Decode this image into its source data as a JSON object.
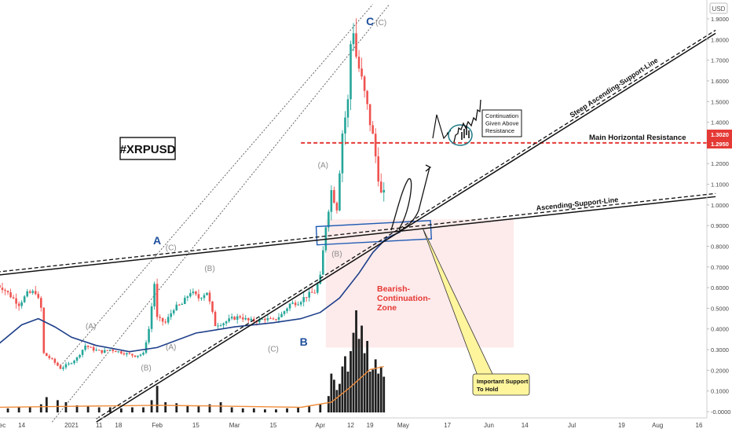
{
  "chart_data": {
    "type": "candlestick",
    "title": "#XRPUSD",
    "currency": "USD",
    "y_scale": "linear",
    "ylim": [
      -0.05,
      1.97
    ],
    "y_ticks": [
      "1.9000",
      "1.8000",
      "1.7000",
      "1.6000",
      "1.5000",
      "1.4000",
      "1.3000",
      "1.2000",
      "1.1000",
      "1.0000",
      "0.9000",
      "0.8000",
      "0.7000",
      "0.6000",
      "0.5000",
      "0.4000",
      "0.3000",
      "0.2000",
      "0.1000",
      "-0.0000"
    ],
    "price_tags": [
      {
        "label": "1.3020",
        "value": 1.302,
        "color": "#e53935"
      },
      {
        "label": "1.2950",
        "value": 1.295,
        "color": "#e53935"
      }
    ],
    "x_ticks": [
      {
        "label": "ec",
        "date": "2020-12-07"
      },
      {
        "label": "14",
        "date": "2020-12-14"
      },
      {
        "label": "2021",
        "date": "2021-01-01"
      },
      {
        "label": "11",
        "date": "2021-01-11"
      },
      {
        "label": "18",
        "date": "2021-01-18"
      },
      {
        "label": "Feb",
        "date": "2021-02-01"
      },
      {
        "label": "15",
        "date": "2021-02-15"
      },
      {
        "label": "Mar",
        "date": "2021-03-01"
      },
      {
        "label": "15",
        "date": "2021-03-15"
      },
      {
        "label": "Apr",
        "date": "2021-04-01"
      },
      {
        "label": "12",
        "date": "2021-04-12"
      },
      {
        "label": "19",
        "date": "2021-04-19"
      },
      {
        "label": "May",
        "date": "2021-05-01"
      },
      {
        "label": "17",
        "date": "2021-05-17"
      },
      {
        "label": "Jun",
        "date": "2021-06-01"
      },
      {
        "label": "14",
        "date": "2021-06-14"
      },
      {
        "label": "Jul",
        "date": "2021-07-01"
      },
      {
        "label": "19",
        "date": "2021-07-19"
      },
      {
        "label": "Aug",
        "date": "2021-08-01"
      },
      {
        "label": "16",
        "date": "2021-08-16"
      }
    ],
    "price_path": [
      [
        "2020-12-05",
        0.62
      ],
      [
        "2020-12-08",
        0.6
      ],
      [
        "2020-12-11",
        0.56
      ],
      [
        "2020-12-14",
        0.52
      ],
      [
        "2020-12-17",
        0.57
      ],
      [
        "2020-12-20",
        0.58
      ],
      [
        "2020-12-22",
        0.5
      ],
      [
        "2020-12-23",
        0.28
      ],
      [
        "2020-12-26",
        0.25
      ],
      [
        "2020-12-29",
        0.21
      ],
      [
        "2021-01-01",
        0.23
      ],
      [
        "2021-01-04",
        0.26
      ],
      [
        "2021-01-07",
        0.32
      ],
      [
        "2021-01-10",
        0.3
      ],
      [
        "2021-01-13",
        0.29
      ],
      [
        "2021-01-16",
        0.3
      ],
      [
        "2021-01-19",
        0.29
      ],
      [
        "2021-01-22",
        0.28
      ],
      [
        "2021-01-25",
        0.27
      ],
      [
        "2021-01-28",
        0.28
      ],
      [
        "2021-01-30",
        0.4
      ],
      [
        "2021-02-01",
        0.62
      ],
      [
        "2021-02-02",
        0.45
      ],
      [
        "2021-02-05",
        0.43
      ],
      [
        "2021-02-08",
        0.5
      ],
      [
        "2021-02-11",
        0.52
      ],
      [
        "2021-02-14",
        0.58
      ],
      [
        "2021-02-17",
        0.55
      ],
      [
        "2021-02-20",
        0.58
      ],
      [
        "2021-02-23",
        0.42
      ],
      [
        "2021-02-26",
        0.43
      ],
      [
        "2021-03-01",
        0.45
      ],
      [
        "2021-03-04",
        0.46
      ],
      [
        "2021-03-07",
        0.44
      ],
      [
        "2021-03-10",
        0.44
      ],
      [
        "2021-03-13",
        0.45
      ],
      [
        "2021-03-16",
        0.44
      ],
      [
        "2021-03-19",
        0.47
      ],
      [
        "2021-03-22",
        0.52
      ],
      [
        "2021-03-25",
        0.53
      ],
      [
        "2021-03-28",
        0.56
      ],
      [
        "2021-03-31",
        0.58
      ],
      [
        "2021-04-02",
        0.65
      ],
      [
        "2021-04-04",
        0.9
      ],
      [
        "2021-04-06",
        1.07
      ],
      [
        "2021-04-08",
        0.99
      ],
      [
        "2021-04-10",
        1.35
      ],
      [
        "2021-04-12",
        1.5
      ],
      [
        "2021-04-13",
        1.78
      ],
      [
        "2021-04-14",
        1.85
      ],
      [
        "2021-04-15",
        1.72
      ],
      [
        "2021-04-17",
        1.6
      ],
      [
        "2021-04-19",
        1.47
      ],
      [
        "2021-04-21",
        1.33
      ],
      [
        "2021-04-23",
        1.14
      ],
      [
        "2021-04-24",
        1.05
      ]
    ],
    "ma_path": [
      [
        "2020-12-05",
        0.32
      ],
      [
        "2020-12-14",
        0.42
      ],
      [
        "2020-12-20",
        0.45
      ],
      [
        "2020-12-26",
        0.41
      ],
      [
        "2021-01-01",
        0.36
      ],
      [
        "2021-01-10",
        0.32
      ],
      [
        "2021-01-22",
        0.29
      ],
      [
        "2021-02-01",
        0.31
      ],
      [
        "2021-02-15",
        0.38
      ],
      [
        "2021-03-01",
        0.41
      ],
      [
        "2021-03-15",
        0.43
      ],
      [
        "2021-03-25",
        0.45
      ],
      [
        "2021-04-01",
        0.48
      ],
      [
        "2021-04-08",
        0.55
      ],
      [
        "2021-04-15",
        0.67
      ],
      [
        "2021-04-20",
        0.77
      ],
      [
        "2021-04-25",
        0.84
      ],
      [
        "2021-04-30",
        0.87
      ]
    ],
    "volume": {
      "unit": "relative (0-1)",
      "series": [
        [
          "2020-12-05",
          0.05
        ],
        [
          "2020-12-09",
          0.04
        ],
        [
          "2020-12-13",
          0.05
        ],
        [
          "2020-12-17",
          0.05
        ],
        [
          "2020-12-21",
          0.08
        ],
        [
          "2020-12-23",
          0.15
        ],
        [
          "2020-12-27",
          0.12
        ],
        [
          "2020-12-30",
          0.1
        ],
        [
          "2021-01-03",
          0.07
        ],
        [
          "2021-01-07",
          0.06
        ],
        [
          "2021-01-11",
          0.05
        ],
        [
          "2021-01-15",
          0.05
        ],
        [
          "2021-01-19",
          0.04
        ],
        [
          "2021-01-23",
          0.05
        ],
        [
          "2021-01-27",
          0.05
        ],
        [
          "2021-01-30",
          0.12
        ],
        [
          "2021-02-01",
          0.26
        ],
        [
          "2021-02-04",
          0.1
        ],
        [
          "2021-02-08",
          0.09
        ],
        [
          "2021-02-12",
          0.07
        ],
        [
          "2021-02-16",
          0.06
        ],
        [
          "2021-02-20",
          0.08
        ],
        [
          "2021-02-24",
          0.1
        ],
        [
          "2021-02-28",
          0.05
        ],
        [
          "2021-03-04",
          0.04
        ],
        [
          "2021-03-08",
          0.04
        ],
        [
          "2021-03-12",
          0.03
        ],
        [
          "2021-03-16",
          0.03
        ],
        [
          "2021-03-20",
          0.04
        ],
        [
          "2021-03-24",
          0.05
        ],
        [
          "2021-03-28",
          0.06
        ],
        [
          "2021-04-01",
          0.08
        ],
        [
          "2021-04-04",
          0.16
        ],
        [
          "2021-04-05",
          0.38
        ],
        [
          "2021-04-06",
          0.32
        ],
        [
          "2021-04-07",
          0.22
        ],
        [
          "2021-04-08",
          0.28
        ],
        [
          "2021-04-09",
          0.45
        ],
        [
          "2021-04-10",
          0.55
        ],
        [
          "2021-04-11",
          0.4
        ],
        [
          "2021-04-12",
          0.6
        ],
        [
          "2021-04-13",
          0.78
        ],
        [
          "2021-04-14",
          1.0
        ],
        [
          "2021-04-15",
          0.72
        ],
        [
          "2021-04-16",
          0.85
        ],
        [
          "2021-04-17",
          0.58
        ],
        [
          "2021-04-18",
          0.7
        ],
        [
          "2021-04-19",
          0.4
        ],
        [
          "2021-04-20",
          0.42
        ],
        [
          "2021-04-21",
          0.52
        ],
        [
          "2021-04-22",
          0.38
        ],
        [
          "2021-04-23",
          0.45
        ],
        [
          "2021-04-24",
          0.35
        ]
      ]
    },
    "volume_ma": [
      [
        "2020-12-05",
        0.05
      ],
      [
        "2021-01-01",
        0.06
      ],
      [
        "2021-02-01",
        0.07
      ],
      [
        "2021-03-01",
        0.06
      ],
      [
        "2021-03-25",
        0.05
      ],
      [
        "2021-04-05",
        0.1
      ],
      [
        "2021-04-12",
        0.25
      ],
      [
        "2021-04-19",
        0.42
      ],
      [
        "2021-04-24",
        0.45
      ]
    ],
    "lines": [
      {
        "name": "Main Horizontal Resistance",
        "style": "red-dashed",
        "from": [
          "2021-03-25",
          1.3
        ],
        "to": [
          "2021-08-22",
          1.3
        ]
      },
      {
        "name": "Steep Ascending-Support-Line",
        "style": "black-solid+dashed",
        "from": [
          "2021-01-10",
          -0.05
        ],
        "to": [
          "2021-08-22",
          1.83
        ]
      },
      {
        "name": "Ascending-Support-Line",
        "style": "black-solid+dashed",
        "from": [
          "2020-12-05",
          0.66
        ],
        "to": [
          "2021-08-22",
          1.04
        ]
      },
      {
        "name": "upper channel",
        "style": "grey-dotted",
        "from": [
          "2020-12-25",
          -0.05
        ],
        "to": [
          "2021-04-26",
          1.97
        ]
      },
      {
        "name": "lower channel",
        "style": "grey-dotted",
        "from": [
          "2020-12-28",
          0.22
        ],
        "to": [
          "2021-04-20",
          1.97
        ]
      }
    ],
    "annotations": [
      {
        "text": "#XRPUSD",
        "kind": "title-box"
      },
      {
        "text": "A",
        "kind": "wave-major",
        "at": [
          "2021-02-01",
          0.81
        ]
      },
      {
        "text": "B",
        "kind": "wave-major",
        "at": [
          "2021-03-26",
          0.32
        ]
      },
      {
        "text": "C",
        "kind": "wave-major",
        "at": [
          "2021-04-19",
          1.87
        ]
      },
      {
        "text": "(A)",
        "kind": "wave-minor",
        "at": [
          "2021-01-08",
          0.4
        ]
      },
      {
        "text": "(A)",
        "kind": "wave-minor",
        "at": [
          "2021-02-06",
          0.3
        ]
      },
      {
        "text": "(A)",
        "kind": "wave-minor",
        "at": [
          "2021-04-02",
          1.18
        ]
      },
      {
        "text": "(B)",
        "kind": "wave-minor",
        "at": [
          "2021-01-28",
          0.2
        ]
      },
      {
        "text": "(B)",
        "kind": "wave-minor",
        "at": [
          "2021-02-20",
          0.68
        ]
      },
      {
        "text": "(B)",
        "kind": "wave-minor",
        "at": [
          "2021-04-07",
          0.75
        ]
      },
      {
        "text": "(C)",
        "kind": "wave-minor",
        "at": [
          "2021-02-06",
          0.78
        ]
      },
      {
        "text": "(C)",
        "kind": "wave-minor",
        "at": [
          "2021-03-15",
          0.29
        ]
      },
      {
        "text": "(C)",
        "kind": "wave-minor",
        "at": [
          "2021-04-23",
          1.87
        ]
      },
      {
        "text": "Bearish-\nContinuation-\nZone",
        "kind": "zone-label"
      },
      {
        "text": "Continuation\nGiven Above\nResistance",
        "kind": "note-box"
      },
      {
        "text": "Important Support\nTo Hold",
        "kind": "callout"
      },
      {
        "text": "Main Horizontal Resistance",
        "kind": "line-label"
      },
      {
        "text": "Steep Ascending-Support-Line",
        "kind": "line-label"
      },
      {
        "text": "Ascending-Support-Line",
        "kind": "line-label"
      }
    ],
    "zones": [
      {
        "name": "Bearish-Continuation-Zone",
        "color": "#fde8e8",
        "x": [
          "2021-04-03",
          "2021-06-10"
        ],
        "y": [
          0.31,
          0.93
        ]
      },
      {
        "name": "support box",
        "color": "#1e5ab4",
        "x": [
          "2021-04-03",
          "2021-05-11"
        ],
        "y": [
          0.83,
          0.93
        ]
      }
    ],
    "colors": {
      "up": "#26a69a",
      "down": "#ef5350",
      "ma": "#1e3f8a",
      "volume": "#1f1f1f",
      "volume_ma": "#f08c3a",
      "resistance": "#e53935",
      "wave_major": "#1e4f9c",
      "wave_minor": "#8a8a8a",
      "callout": "#fff59d"
    },
    "grid": false,
    "legend": "none"
  }
}
